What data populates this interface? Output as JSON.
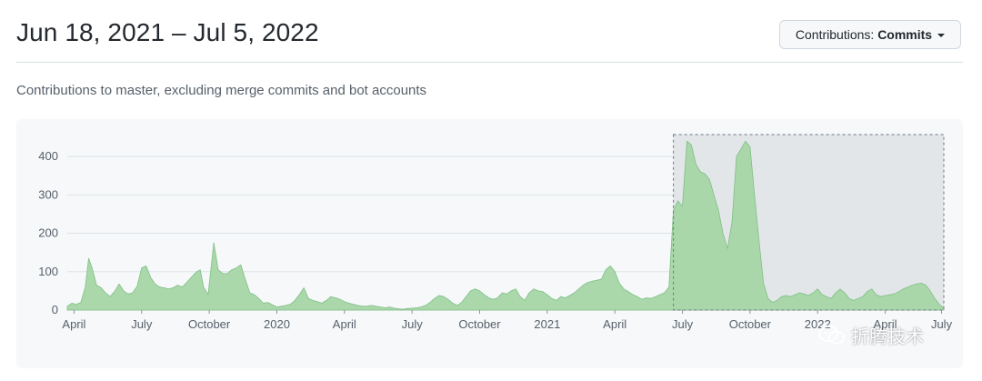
{
  "header": {
    "date_range": "Jun 18, 2021 – Jul 5, 2022",
    "contrib_prefix": "Contributions: ",
    "contrib_value": "Commits"
  },
  "subtitle": "Contributions to master, excluding merge commits and bot accounts",
  "watermark": {
    "text": "折腾技术",
    "icon": "wechat-icon"
  },
  "colors": {
    "area_fill": "#a5d6a7",
    "area_stroke": "#7fbf84",
    "grid": "#dde3e8",
    "selection": "#e3e6e9"
  },
  "chart_data": {
    "type": "area",
    "ylim": [
      0,
      450
    ],
    "yticks": [
      0,
      100,
      200,
      300,
      400
    ],
    "xlim": [
      0,
      38.9
    ],
    "xticks": [
      {
        "label": "April",
        "x": 0.3
      },
      {
        "label": "July",
        "x": 3.3
      },
      {
        "label": "October",
        "x": 6.3
      },
      {
        "label": "2020",
        "x": 9.3
      },
      {
        "label": "April",
        "x": 12.3
      },
      {
        "label": "July",
        "x": 15.3
      },
      {
        "label": "October",
        "x": 18.3
      },
      {
        "label": "2021",
        "x": 21.3
      },
      {
        "label": "April",
        "x": 24.3
      },
      {
        "label": "July",
        "x": 27.3
      },
      {
        "label": "October",
        "x": 30.3
      },
      {
        "label": "2022",
        "x": 33.3
      },
      {
        "label": "April",
        "x": 36.3
      },
      {
        "label": "July",
        "x": 38.8
      }
    ],
    "selection": {
      "x0": 26.9,
      "x1": 38.9
    },
    "points": [
      [
        0,
        10
      ],
      [
        0.2,
        18
      ],
      [
        0.4,
        15
      ],
      [
        0.6,
        20
      ],
      [
        0.8,
        60
      ],
      [
        0.95,
        135
      ],
      [
        1.1,
        110
      ],
      [
        1.3,
        65
      ],
      [
        1.5,
        58
      ],
      [
        1.7,
        45
      ],
      [
        1.9,
        35
      ],
      [
        2.1,
        48
      ],
      [
        2.3,
        68
      ],
      [
        2.5,
        50
      ],
      [
        2.7,
        42
      ],
      [
        2.9,
        45
      ],
      [
        3.1,
        62
      ],
      [
        3.3,
        110
      ],
      [
        3.5,
        115
      ],
      [
        3.7,
        85
      ],
      [
        3.9,
        68
      ],
      [
        4.1,
        60
      ],
      [
        4.3,
        58
      ],
      [
        4.5,
        55
      ],
      [
        4.7,
        58
      ],
      [
        4.9,
        65
      ],
      [
        5.1,
        60
      ],
      [
        5.3,
        72
      ],
      [
        5.5,
        85
      ],
      [
        5.7,
        98
      ],
      [
        5.9,
        105
      ],
      [
        6.05,
        60
      ],
      [
        6.25,
        40
      ],
      [
        6.5,
        175
      ],
      [
        6.7,
        105
      ],
      [
        6.9,
        95
      ],
      [
        7.1,
        95
      ],
      [
        7.3,
        105
      ],
      [
        7.5,
        110
      ],
      [
        7.7,
        118
      ],
      [
        7.9,
        80
      ],
      [
        8.1,
        45
      ],
      [
        8.3,
        40
      ],
      [
        8.5,
        30
      ],
      [
        8.7,
        18
      ],
      [
        8.9,
        20
      ],
      [
        9.1,
        14
      ],
      [
        9.3,
        8
      ],
      [
        9.5,
        10
      ],
      [
        9.7,
        12
      ],
      [
        9.9,
        15
      ],
      [
        10.1,
        25
      ],
      [
        10.3,
        40
      ],
      [
        10.5,
        58
      ],
      [
        10.7,
        30
      ],
      [
        10.9,
        25
      ],
      [
        11.1,
        22
      ],
      [
        11.3,
        18
      ],
      [
        11.5,
        25
      ],
      [
        11.7,
        35
      ],
      [
        11.9,
        32
      ],
      [
        12.1,
        28
      ],
      [
        12.3,
        22
      ],
      [
        12.5,
        18
      ],
      [
        12.7,
        15
      ],
      [
        12.9,
        12
      ],
      [
        13.1,
        10
      ],
      [
        13.3,
        10
      ],
      [
        13.5,
        12
      ],
      [
        13.7,
        10
      ],
      [
        13.9,
        8
      ],
      [
        14.1,
        6
      ],
      [
        14.3,
        8
      ],
      [
        14.5,
        5
      ],
      [
        14.7,
        3
      ],
      [
        14.9,
        2
      ],
      [
        15.1,
        4
      ],
      [
        15.3,
        5
      ],
      [
        15.5,
        6
      ],
      [
        15.7,
        8
      ],
      [
        15.9,
        12
      ],
      [
        16.1,
        20
      ],
      [
        16.3,
        30
      ],
      [
        16.5,
        38
      ],
      [
        16.7,
        35
      ],
      [
        16.9,
        28
      ],
      [
        17.1,
        18
      ],
      [
        17.3,
        12
      ],
      [
        17.5,
        20
      ],
      [
        17.7,
        35
      ],
      [
        17.9,
        50
      ],
      [
        18.1,
        55
      ],
      [
        18.3,
        50
      ],
      [
        18.5,
        40
      ],
      [
        18.7,
        32
      ],
      [
        18.9,
        28
      ],
      [
        19.1,
        32
      ],
      [
        19.3,
        45
      ],
      [
        19.5,
        42
      ],
      [
        19.7,
        50
      ],
      [
        19.9,
        55
      ],
      [
        20.1,
        35
      ],
      [
        20.3,
        25
      ],
      [
        20.5,
        45
      ],
      [
        20.7,
        55
      ],
      [
        20.9,
        50
      ],
      [
        21.1,
        48
      ],
      [
        21.3,
        40
      ],
      [
        21.5,
        30
      ],
      [
        21.7,
        25
      ],
      [
        21.9,
        35
      ],
      [
        22.1,
        32
      ],
      [
        22.3,
        38
      ],
      [
        22.5,
        45
      ],
      [
        22.7,
        55
      ],
      [
        22.9,
        65
      ],
      [
        23.1,
        72
      ],
      [
        23.3,
        75
      ],
      [
        23.5,
        78
      ],
      [
        23.7,
        80
      ],
      [
        23.9,
        105
      ],
      [
        24.1,
        115
      ],
      [
        24.3,
        100
      ],
      [
        24.5,
        70
      ],
      [
        24.7,
        55
      ],
      [
        24.9,
        48
      ],
      [
        25.1,
        40
      ],
      [
        25.3,
        35
      ],
      [
        25.5,
        28
      ],
      [
        25.7,
        32
      ],
      [
        25.9,
        30
      ],
      [
        26.1,
        35
      ],
      [
        26.3,
        40
      ],
      [
        26.5,
        45
      ],
      [
        26.7,
        60
      ],
      [
        26.9,
        260
      ],
      [
        27.1,
        285
      ],
      [
        27.3,
        270
      ],
      [
        27.5,
        440
      ],
      [
        27.7,
        430
      ],
      [
        27.9,
        380
      ],
      [
        28.1,
        360
      ],
      [
        28.3,
        355
      ],
      [
        28.5,
        340
      ],
      [
        28.7,
        300
      ],
      [
        28.9,
        260
      ],
      [
        29.1,
        200
      ],
      [
        29.3,
        160
      ],
      [
        29.5,
        230
      ],
      [
        29.7,
        400
      ],
      [
        29.9,
        420
      ],
      [
        30.1,
        440
      ],
      [
        30.3,
        425
      ],
      [
        30.5,
        300
      ],
      [
        30.7,
        180
      ],
      [
        30.9,
        70
      ],
      [
        31.1,
        30
      ],
      [
        31.3,
        20
      ],
      [
        31.5,
        25
      ],
      [
        31.7,
        35
      ],
      [
        31.9,
        38
      ],
      [
        32.1,
        35
      ],
      [
        32.3,
        40
      ],
      [
        32.5,
        45
      ],
      [
        32.7,
        42
      ],
      [
        32.9,
        38
      ],
      [
        33.1,
        45
      ],
      [
        33.3,
        55
      ],
      [
        33.5,
        40
      ],
      [
        33.7,
        35
      ],
      [
        33.9,
        30
      ],
      [
        34.1,
        45
      ],
      [
        34.3,
        55
      ],
      [
        34.5,
        45
      ],
      [
        34.7,
        30
      ],
      [
        34.9,
        25
      ],
      [
        35.1,
        30
      ],
      [
        35.3,
        35
      ],
      [
        35.5,
        48
      ],
      [
        35.7,
        55
      ],
      [
        35.9,
        40
      ],
      [
        36.1,
        35
      ],
      [
        36.3,
        38
      ],
      [
        36.5,
        40
      ],
      [
        36.7,
        42
      ],
      [
        36.9,
        48
      ],
      [
        37.1,
        55
      ],
      [
        37.3,
        60
      ],
      [
        37.5,
        65
      ],
      [
        37.7,
        68
      ],
      [
        37.9,
        70
      ],
      [
        38.1,
        65
      ],
      [
        38.3,
        50
      ],
      [
        38.5,
        30
      ],
      [
        38.7,
        15
      ],
      [
        38.9,
        5
      ]
    ]
  }
}
